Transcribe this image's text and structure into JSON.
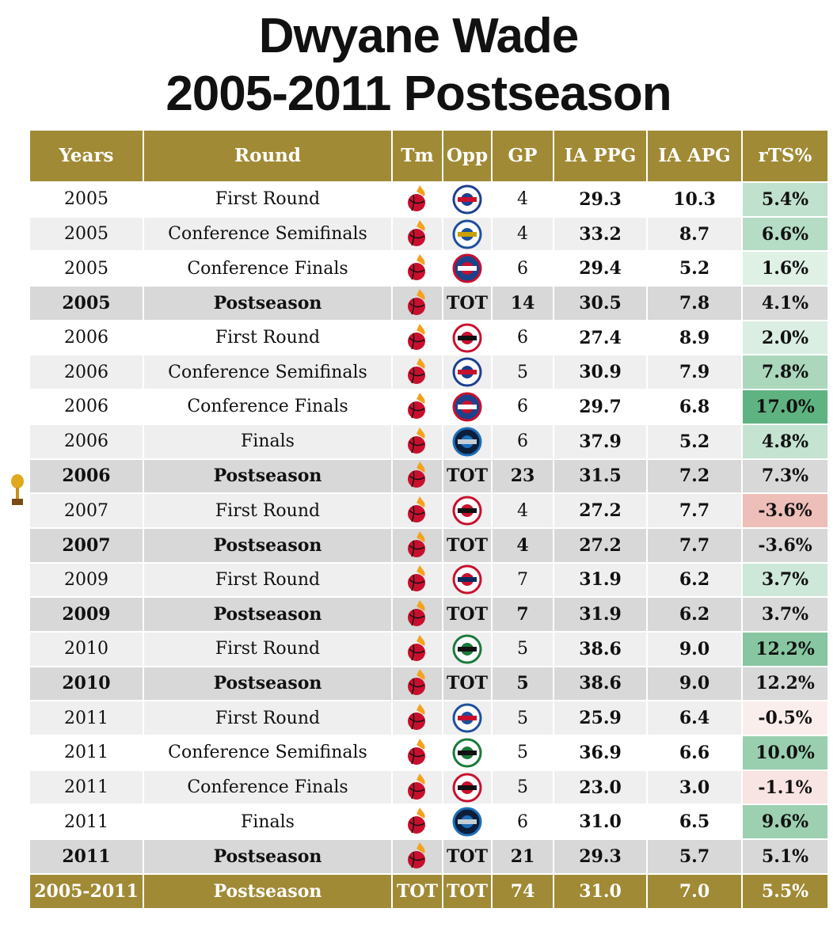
{
  "title": [
    "Dwyane Wade",
    "2005-2011 Postseason"
  ],
  "table": {
    "header": [
      "Years",
      "Round",
      "Tm",
      "Opp",
      "GP",
      "IA PPG",
      "IA APG",
      "rTS%"
    ],
    "rows": [
      [
        "2005",
        "First Round",
        null,
        null,
        4,
        "29.3",
        "10.3",
        "5.4%"
      ],
      [
        "2005",
        "Conference Semifinals",
        null,
        null,
        4,
        "33.2",
        "8.7",
        "6.6%"
      ],
      [
        "2005",
        "Conference Finals",
        null,
        null,
        6,
        "29.4",
        "5.2",
        "1.6%"
      ],
      [
        "2005",
        "Postseason",
        null,
        "TOT",
        14,
        "30.5",
        "7.8",
        "4.1%"
      ],
      [
        "2006",
        "First Round",
        null,
        null,
        6,
        "27.4",
        "8.9",
        "2.0%"
      ],
      [
        "2006",
        "Conference Semifinals",
        null,
        null,
        5,
        "30.9",
        "7.9",
        "7.8%"
      ],
      [
        "2006",
        "Conference Finals",
        null,
        null,
        6,
        "29.7",
        "6.8",
        "17.0%"
      ],
      [
        "2006",
        "Finals",
        null,
        null,
        6,
        "37.9",
        "5.2",
        "4.8%"
      ],
      [
        "2006",
        "Postseason",
        null,
        "TOT",
        23,
        "31.5",
        "7.2",
        "7.3%"
      ],
      [
        "2007",
        "First Round",
        null,
        null,
        4,
        "27.2",
        "7.7",
        "-3.6%"
      ],
      [
        "2007",
        "Postseason",
        null,
        "TOT",
        4,
        "27.2",
        "7.7",
        "-3.6%"
      ],
      [
        "2009",
        "First Round",
        null,
        null,
        7,
        "31.9",
        "6.2",
        "3.7%"
      ],
      [
        "2009",
        "Postseason",
        null,
        "TOT",
        7,
        "31.9",
        "6.2",
        "3.7%"
      ],
      [
        "2010",
        "First Round",
        null,
        null,
        5,
        "38.6",
        "9.0",
        "12.2%"
      ],
      [
        "2010",
        "Postseason",
        null,
        "TOT",
        5,
        "38.6",
        "9.0",
        "12.2%"
      ],
      [
        "2011",
        "First Round",
        null,
        null,
        5,
        "25.9",
        "6.4",
        "-0.5%"
      ],
      [
        "2011",
        "Conference Semifinals",
        null,
        null,
        5,
        "36.9",
        "6.6",
        "10.0%"
      ],
      [
        "2011",
        "Conference Finals",
        null,
        null,
        5,
        "23.0",
        "3.0",
        "-1.1%"
      ],
      [
        "2011",
        "Finals",
        null,
        null,
        6,
        "31.0",
        "6.5",
        "9.6%"
      ],
      [
        "2011",
        "Postseason",
        null,
        "TOT",
        21,
        "29.3",
        "5.7",
        "5.1%"
      ]
    ],
    "footer": [
      "2005-2011",
      "Postseason",
      "TOT",
      "TOT",
      74,
      "31.0",
      "7.0",
      "5.5%"
    ]
  }
}
